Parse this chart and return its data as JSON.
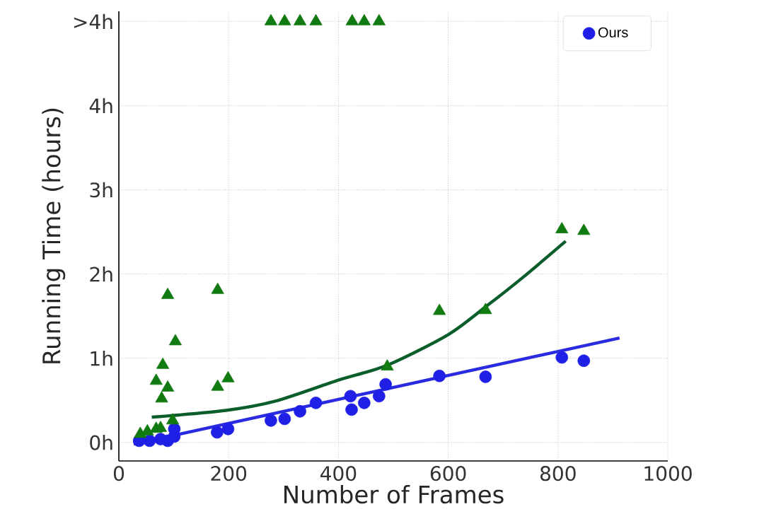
{
  "chart_data": {
    "type": "scatter",
    "xlabel": "Number of Frames",
    "ylabel": "Running Time (hours)",
    "xlim": [
      0,
      1000
    ],
    "ylim": [
      -0.22,
      5.12
    ],
    "xticks": [
      0,
      200,
      400,
      600,
      800,
      1000
    ],
    "yticks": [
      {
        "value": 0,
        "label": "0h"
      },
      {
        "value": 1,
        "label": "1h"
      },
      {
        "value": 2,
        "label": "2h"
      },
      {
        "value": 3,
        "label": "3h"
      },
      {
        "value": 4,
        "label": "4h"
      },
      {
        "value": 5,
        "label": ">4h"
      }
    ],
    "grid": true,
    "legend": "top right",
    "series": [
      {
        "name": "Ours",
        "marker": "circle",
        "color": "#1f1fe6",
        "x": [
          37,
          56,
          76,
          89,
          101,
          101,
          179,
          199,
          277,
          302,
          330,
          359,
          422,
          424,
          447,
          474,
          486,
          584,
          668,
          807,
          847
        ],
        "values": [
          0.02,
          0.02,
          0.04,
          0.02,
          0.07,
          0.16,
          0.12,
          0.16,
          0.26,
          0.28,
          0.37,
          0.47,
          0.55,
          0.39,
          0.47,
          0.55,
          0.69,
          0.79,
          0.78,
          1.01,
          0.97
        ]
      },
      {
        "marker": "triangle",
        "color": "#117a11",
        "x": [
          277,
          302,
          330,
          359,
          425,
          447,
          474,
          39,
          52,
          68,
          76,
          68,
          80,
          89,
          78,
          89,
          103,
          98,
          180,
          180,
          199,
          489,
          584,
          668,
          807,
          847
        ],
        "values": [
          5,
          5,
          5,
          5,
          5,
          5,
          5,
          0.1,
          0.13,
          0.16,
          0.17,
          0.73,
          0.92,
          0.65,
          0.52,
          1.75,
          1.2,
          0.26,
          1.81,
          0.66,
          0.76,
          0.9,
          1.56,
          1.57,
          2.53,
          2.51
        ]
      },
      {
        "type": "line",
        "color": "#2a2ae0",
        "x": [
          27,
          912
        ],
        "values": [
          -0.02,
          1.24
        ]
      },
      {
        "type": "line",
        "color": "#0b5e2b",
        "x": [
          60,
          195,
          285,
          400,
          490,
          600,
          670,
          736,
          814
        ],
        "values": [
          0.3,
          0.38,
          0.49,
          0.74,
          0.92,
          1.28,
          1.62,
          1.96,
          2.39
        ]
      }
    ]
  }
}
